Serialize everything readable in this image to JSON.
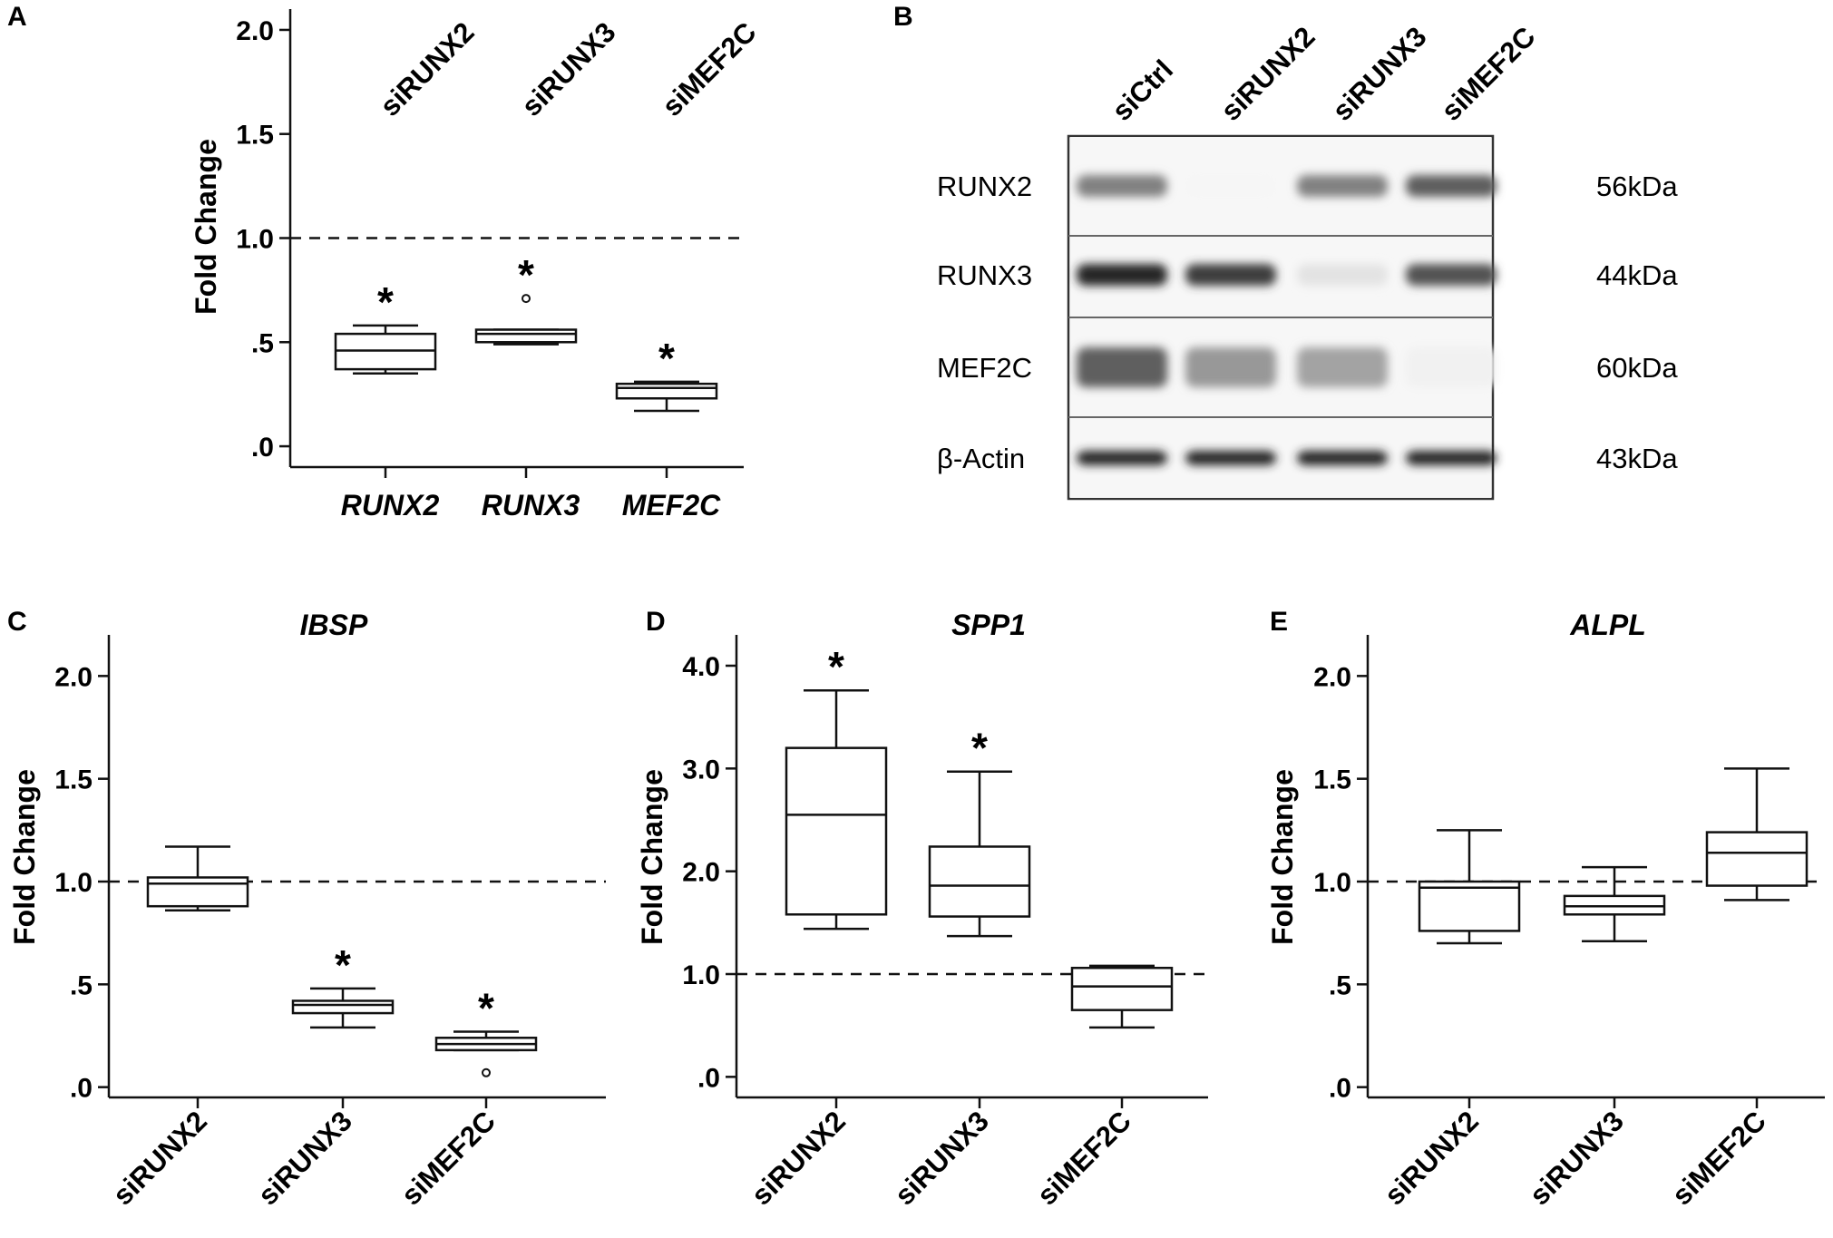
{
  "panels": {
    "A": {
      "letter": "A"
    },
    "B": {
      "letter": "B"
    },
    "C": {
      "letter": "C"
    },
    "D": {
      "letter": "D"
    },
    "E": {
      "letter": "E"
    }
  },
  "chart_data": [
    {
      "id": "A",
      "type": "box",
      "title": "",
      "ylabel": "Fold Change",
      "ylim": [
        -0.1,
        2.1
      ],
      "yticks": [
        0,
        0.5,
        1.0,
        1.5,
        2.0
      ],
      "ytick_labels": [
        ".0",
        ".5",
        "1.0",
        "1.5",
        "2.0"
      ],
      "categories": [
        "RUNX2",
        "RUNX3",
        "MEF2C"
      ],
      "category_italic": true,
      "top_labels": [
        "siRUNX2",
        "siRUNX3",
        "siMEF2C"
      ],
      "reference_line": 1.0,
      "boxes": [
        {
          "min": 0.35,
          "q1": 0.37,
          "median": 0.46,
          "q3": 0.54,
          "max": 0.58,
          "outliers": [],
          "significant": true
        },
        {
          "min": 0.49,
          "q1": 0.5,
          "median": 0.54,
          "q3": 0.56,
          "max": 0.56,
          "outliers": [
            0.71
          ],
          "significant": true
        },
        {
          "min": 0.17,
          "q1": 0.23,
          "median": 0.28,
          "q3": 0.3,
          "max": 0.31,
          "outliers": [],
          "significant": true
        }
      ],
      "significance_label": "*"
    },
    {
      "id": "C",
      "type": "box",
      "title": "IBSP",
      "ylabel": "Fold Change",
      "ylim": [
        -0.05,
        2.2
      ],
      "yticks": [
        0,
        0.5,
        1.0,
        1.5,
        2.0
      ],
      "ytick_labels": [
        ".0",
        ".5",
        "1.0",
        "1.5",
        "2.0"
      ],
      "categories": [
        "siRUNX2",
        "siRUNX3",
        "siMEF2C"
      ],
      "reference_line": 1.0,
      "boxes": [
        {
          "min": 0.86,
          "q1": 0.88,
          "median": 0.99,
          "q3": 1.02,
          "max": 1.17,
          "outliers": [],
          "significant": false
        },
        {
          "min": 0.29,
          "q1": 0.36,
          "median": 0.4,
          "q3": 0.42,
          "max": 0.48,
          "outliers": [],
          "significant": true
        },
        {
          "min": 0.18,
          "q1": 0.18,
          "median": 0.21,
          "q3": 0.24,
          "max": 0.27,
          "outliers": [
            0.07
          ],
          "significant": true
        }
      ],
      "significance_label": "*"
    },
    {
      "id": "D",
      "type": "box",
      "title": "SPP1",
      "ylabel": "Fold Change",
      "ylim": [
        -0.2,
        4.3
      ],
      "yticks": [
        0,
        1.0,
        2.0,
        3.0,
        4.0
      ],
      "ytick_labels": [
        ".0",
        "1.0",
        "2.0",
        "3.0",
        "4.0"
      ],
      "categories": [
        "siRUNX2",
        "siRUNX3",
        "siMEF2C"
      ],
      "reference_line": 1.0,
      "boxes": [
        {
          "min": 1.44,
          "q1": 1.58,
          "median": 2.55,
          "q3": 3.2,
          "max": 3.76,
          "outliers": [],
          "significant": true
        },
        {
          "min": 1.37,
          "q1": 1.56,
          "median": 1.86,
          "q3": 2.24,
          "max": 2.97,
          "outliers": [],
          "significant": true
        },
        {
          "min": 0.48,
          "q1": 0.65,
          "median": 0.88,
          "q3": 1.06,
          "max": 1.08,
          "outliers": [],
          "significant": false
        }
      ],
      "significance_label": "*"
    },
    {
      "id": "E",
      "type": "box",
      "title": "ALPL",
      "ylabel": "Fold Change",
      "ylim": [
        -0.05,
        2.2
      ],
      "yticks": [
        0,
        0.5,
        1.0,
        1.5,
        2.0
      ],
      "ytick_labels": [
        ".0",
        ".5",
        "1.0",
        "1.5",
        "2.0"
      ],
      "categories": [
        "siRUNX2",
        "siRUNX3",
        "siMEF2C"
      ],
      "reference_line": 1.0,
      "boxes": [
        {
          "min": 0.7,
          "q1": 0.76,
          "median": 0.97,
          "q3": 1.0,
          "max": 1.25,
          "outliers": [],
          "significant": false
        },
        {
          "min": 0.71,
          "q1": 0.84,
          "median": 0.88,
          "q3": 0.93,
          "max": 1.07,
          "outliers": [],
          "significant": false
        },
        {
          "min": 0.91,
          "q1": 0.98,
          "median": 1.14,
          "q3": 1.24,
          "max": 1.55,
          "outliers": [],
          "significant": false
        }
      ],
      "significance_label": "*"
    }
  ],
  "western_blot": {
    "lanes": [
      "siCtrl",
      "siRUNX2",
      "siRUNX3",
      "siMEF2C"
    ],
    "rows": [
      {
        "protein": "RUNX2",
        "size": "56kDa",
        "intensities": [
          0.55,
          0.04,
          0.55,
          0.7
        ]
      },
      {
        "protein": "RUNX3",
        "size": "44kDa",
        "intensities": [
          0.95,
          0.85,
          0.12,
          0.75
        ]
      },
      {
        "protein": "MEF2C",
        "size": "60kDa",
        "intensities": [
          0.7,
          0.45,
          0.4,
          0.06
        ]
      },
      {
        "protein": "β-Actin",
        "size": "43kDa",
        "intensities": [
          0.95,
          0.95,
          0.95,
          0.95
        ]
      }
    ]
  }
}
